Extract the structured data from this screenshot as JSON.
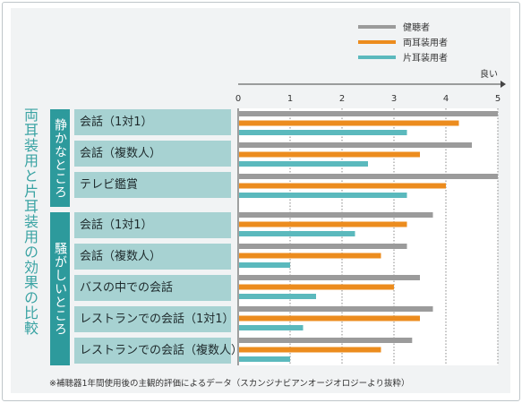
{
  "title": "両耳装用と片耳装用の効果の比較",
  "better_label": "良い",
  "footnote": "※補聴器1年間使用後の主観的評価によるデータ（スカンジナビアンオージオロジーより抜粋）",
  "legend": [
    {
      "name": "健聴者",
      "color": "#9b9b9b"
    },
    {
      "name": "両耳装用者",
      "color": "#ec8c1e"
    },
    {
      "name": "片耳装用者",
      "color": "#5bb9bd"
    }
  ],
  "groups": [
    {
      "label": "静かなところ"
    },
    {
      "label": "騒がしいところ"
    }
  ],
  "chart_data": {
    "type": "bar",
    "orientation": "horizontal",
    "xlim": [
      0,
      5
    ],
    "ticks": [
      "0",
      "1",
      "2",
      "3",
      "4",
      "5"
    ],
    "grid": true,
    "legend_position": "top-right",
    "categories": [
      "会話（1対1）",
      "会話（複数人）",
      "テレビ鑑賞",
      "会話（1対1）",
      "会話（複数人）",
      "バスの中での会話",
      "レストランでの会話（1対1）",
      "レストランでの会話（複数人）"
    ],
    "category_groups": [
      "静かなところ",
      "静かなところ",
      "静かなところ",
      "騒がしいところ",
      "騒がしいところ",
      "騒がしいところ",
      "騒がしいところ",
      "騒がしいところ"
    ],
    "series": [
      {
        "name": "健聴者",
        "color": "#9b9b9b",
        "values": [
          5.0,
          4.5,
          5.0,
          3.75,
          3.25,
          3.5,
          3.75,
          3.35
        ]
      },
      {
        "name": "両耳装用者",
        "color": "#ec8c1e",
        "values": [
          4.25,
          3.5,
          4.0,
          3.25,
          2.75,
          3.0,
          3.5,
          2.75
        ]
      },
      {
        "name": "片耳装用者",
        "color": "#5bb9bd",
        "values": [
          3.25,
          2.5,
          3.25,
          2.25,
          1.0,
          1.5,
          1.25,
          1.0
        ]
      }
    ]
  }
}
